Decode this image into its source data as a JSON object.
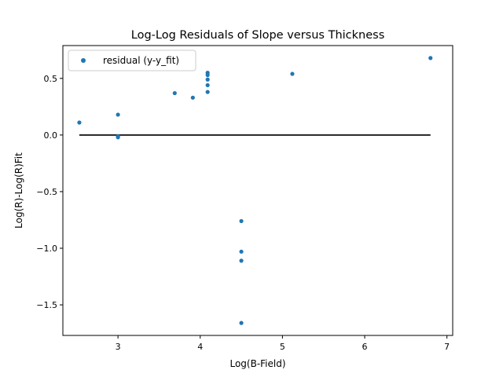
{
  "chart_data": {
    "type": "scatter",
    "title": "Log-Log Residuals of Slope versus Thickness",
    "xlabel": "Log(B-Field)",
    "ylabel": "Log(R)-Log(R)Fit",
    "xlim": [
      2.33,
      7.07
    ],
    "ylim": [
      -1.77,
      0.79
    ],
    "x_ticks": [
      3,
      4,
      5,
      6,
      7
    ],
    "y_ticks": [
      0.5,
      0.0,
      -0.5,
      -1.0,
      -1.5
    ],
    "x_tick_labels": [
      "3",
      "4",
      "5",
      "6",
      "7"
    ],
    "y_tick_labels": [
      "0.5",
      "0.0",
      "−0.5",
      "−1.0",
      "−1.5"
    ],
    "grid": false,
    "legend_position": "upper left",
    "series": [
      {
        "name": "residual (y-y_fit)",
        "color": "#1f77b4",
        "points": [
          {
            "x": 2.53,
            "y": 0.11
          },
          {
            "x": 3.0,
            "y": 0.18
          },
          {
            "x": 3.0,
            "y": -0.01
          },
          {
            "x": 3.0,
            "y": -0.02
          },
          {
            "x": 3.69,
            "y": 0.37
          },
          {
            "x": 3.91,
            "y": 0.33
          },
          {
            "x": 4.09,
            "y": 0.55
          },
          {
            "x": 4.09,
            "y": 0.53
          },
          {
            "x": 4.09,
            "y": 0.49
          },
          {
            "x": 4.09,
            "y": 0.44
          },
          {
            "x": 4.09,
            "y": 0.38
          },
          {
            "x": 4.5,
            "y": -0.76
          },
          {
            "x": 4.5,
            "y": -1.03
          },
          {
            "x": 4.5,
            "y": -1.11
          },
          {
            "x": 4.5,
            "y": -1.66
          },
          {
            "x": 5.12,
            "y": 0.54
          },
          {
            "x": 6.8,
            "y": 0.68
          }
        ]
      }
    ],
    "reference_line": {
      "color": "#222222",
      "x": [
        2.53,
        6.8
      ],
      "y": [
        0.0,
        0.0
      ]
    }
  }
}
